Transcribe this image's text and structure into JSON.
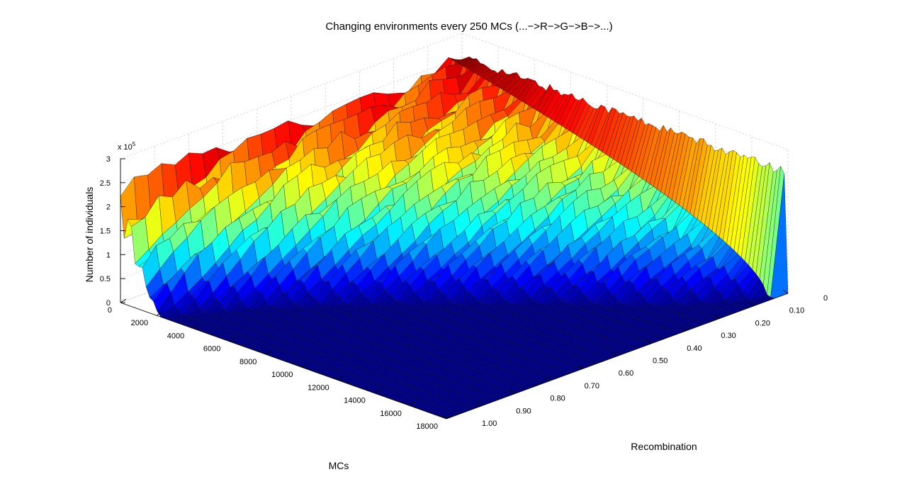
{
  "chart_data": {
    "type": "surface",
    "title": "Changing environments every 250 MCs (...−>R−>G−>B−>...)",
    "xlabel": "MCs",
    "ylabel": "Recombination",
    "zlabel": "Number of individuals",
    "z_exponent_label": "x 10",
    "z_exponent_power": "5",
    "xlim": [
      0,
      18000
    ],
    "ylim": [
      0,
      1.0
    ],
    "zlim": [
      0,
      300000
    ],
    "x_ticks": [
      "0",
      "2000",
      "4000",
      "6000",
      "8000",
      "10000",
      "12000",
      "14000",
      "16000",
      "18000"
    ],
    "y_ticks": [
      "0",
      "0.10",
      "0.20",
      "0.30",
      "0.40",
      "0.50",
      "0.60",
      "0.70",
      "0.80",
      "0.90",
      "1.00"
    ],
    "z_ticks": [
      "0",
      "0.5",
      "1",
      "1.5",
      "2",
      "2.5",
      "3"
    ],
    "colormap": [
      "#00008f",
      "#0000ff",
      "#00ffff",
      "#ffff00",
      "#ff0000",
      "#800000"
    ],
    "environment_period_mcs": 250,
    "max_population": 260000,
    "recombination_threshold_samples": [
      {
        "recombination": 0.0,
        "extinction_mcs": 18000
      },
      {
        "recombination": 0.1,
        "extinction_mcs": 17000
      },
      {
        "recombination": 0.2,
        "extinction_mcs": 15500
      },
      {
        "recombination": 0.3,
        "extinction_mcs": 13500
      },
      {
        "recombination": 0.4,
        "extinction_mcs": 11500
      },
      {
        "recombination": 0.5,
        "extinction_mcs": 9500
      },
      {
        "recombination": 0.6,
        "extinction_mcs": 7700
      },
      {
        "recombination": 0.7,
        "extinction_mcs": 6000
      },
      {
        "recombination": 0.8,
        "extinction_mcs": 4500
      },
      {
        "recombination": 0.9,
        "extinction_mcs": 3200
      },
      {
        "recombination": 1.0,
        "extinction_mcs": 2200
      }
    ],
    "grid": true
  }
}
